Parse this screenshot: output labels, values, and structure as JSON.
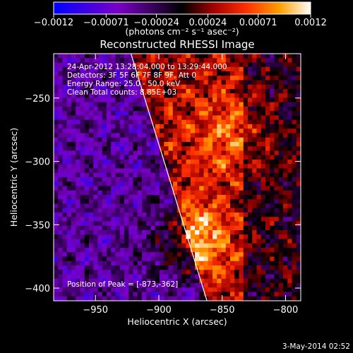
{
  "chart_data": {
    "type": "heatmap",
    "title": "Reconstructed RHESSI Image",
    "xlabel": "Heliocentric X (arcsec)",
    "ylabel": "Heliocentric Y (arcsec)",
    "xlim": [
      -983,
      -788
    ],
    "ylim": [
      -410,
      -215
    ],
    "x_ticks": [
      {
        "value": -950,
        "label": "−950"
      },
      {
        "value": -900,
        "label": "−900"
      },
      {
        "value": -850,
        "label": "−850"
      },
      {
        "value": -800,
        "label": "−800"
      }
    ],
    "y_ticks": [
      {
        "value": -250,
        "label": "−250"
      },
      {
        "value": -300,
        "label": "−300"
      },
      {
        "value": -350,
        "label": "−350"
      },
      {
        "value": -400,
        "label": "−400"
      }
    ],
    "colorbar": {
      "range": [
        -0.0012,
        0.0012
      ],
      "ticks": [
        {
          "value": -0.0012,
          "label": "−0.0012"
        },
        {
          "value": -0.00071,
          "label": "−0.00071"
        },
        {
          "value": -0.00024,
          "label": "−0.00024"
        },
        {
          "value": 0.00024,
          "label": "0.00024"
        },
        {
          "value": 0.00071,
          "label": "0.00071"
        },
        {
          "value": 0.0012,
          "label": "0.0012"
        }
      ],
      "unit_label": "(photons cm⁻² s⁻¹ asec⁻²)"
    },
    "info_lines": [
      "24-Apr-2012 13:28:04.000 to 13:29:44.000",
      "Detectors: 3F 5F 6F 7F 8F 9F, Att 0",
      "Energy Range: 25.0 - 50.0 keV",
      "Clean     Total counts: 8.85E+03"
    ],
    "peak_label": "Position of Peak = [-873,-362]",
    "limb_line": {
      "x": [
        -922,
        -862
      ],
      "y": [
        -215,
        -410
      ]
    },
    "timestamp": "3-May-2014 02:52"
  }
}
